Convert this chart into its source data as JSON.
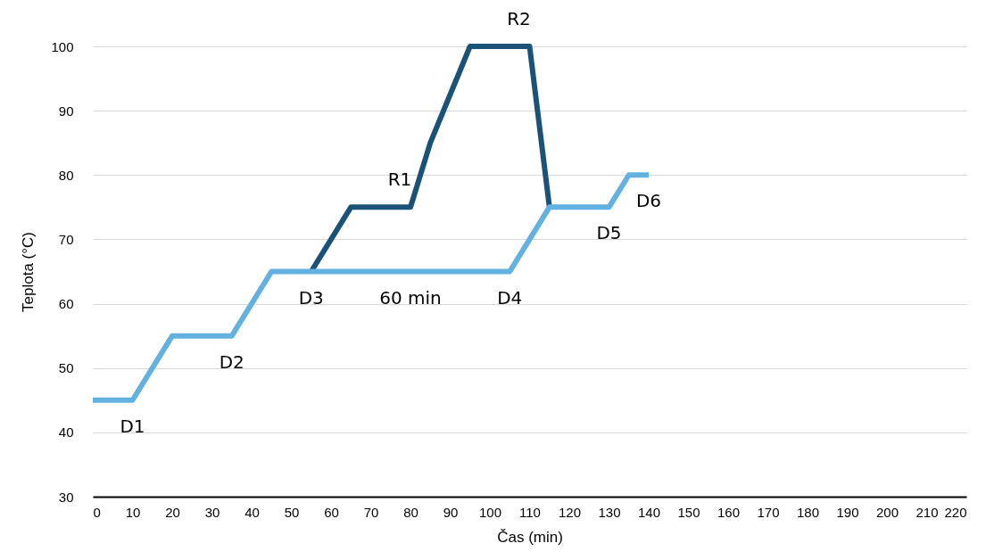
{
  "chart_data": {
    "type": "line",
    "xlabel": "Čas (min)",
    "ylabel": "Teplota (°C)",
    "series": [
      {
        "color": "#1b5378",
        "x": [
          55,
          65,
          80,
          85,
          95,
          110,
          115
        ],
        "values": [
          65,
          75,
          75,
          85,
          100,
          100,
          75
        ]
      },
      {
        "color": "#63b1e0",
        "x": [
          0,
          10,
          20,
          35,
          45,
          105,
          115,
          130,
          135,
          140
        ],
        "values": [
          45,
          45,
          55,
          55,
          65,
          65,
          75,
          75,
          80,
          80
        ]
      }
    ],
    "xlim": [
      0,
      220
    ],
    "xticks": [
      0,
      10,
      20,
      30,
      40,
      50,
      60,
      70,
      80,
      90,
      100,
      110,
      120,
      130,
      140,
      150,
      160,
      170,
      180,
      190,
      200,
      210,
      220
    ],
    "ylim": [
      30,
      100
    ],
    "yticks": [
      30,
      40,
      50,
      60,
      70,
      80,
      90,
      100
    ],
    "grid": "y",
    "annotations": [
      {
        "text": "D1",
        "x": 10,
        "y": 45
      },
      {
        "text": "D2",
        "x": 35,
        "y": 55
      },
      {
        "text": "D3",
        "x": 55,
        "y": 65
      },
      {
        "text": "60 min",
        "x": 80,
        "y": 65
      },
      {
        "text": "D4",
        "x": 105,
        "y": 65
      },
      {
        "text": "R1",
        "x": 80,
        "y": 75
      },
      {
        "text": "R2",
        "x": 110,
        "y": 100
      },
      {
        "text": "D5",
        "x": 130,
        "y": 75
      },
      {
        "text": "D6",
        "x": 140,
        "y": 80
      }
    ]
  }
}
